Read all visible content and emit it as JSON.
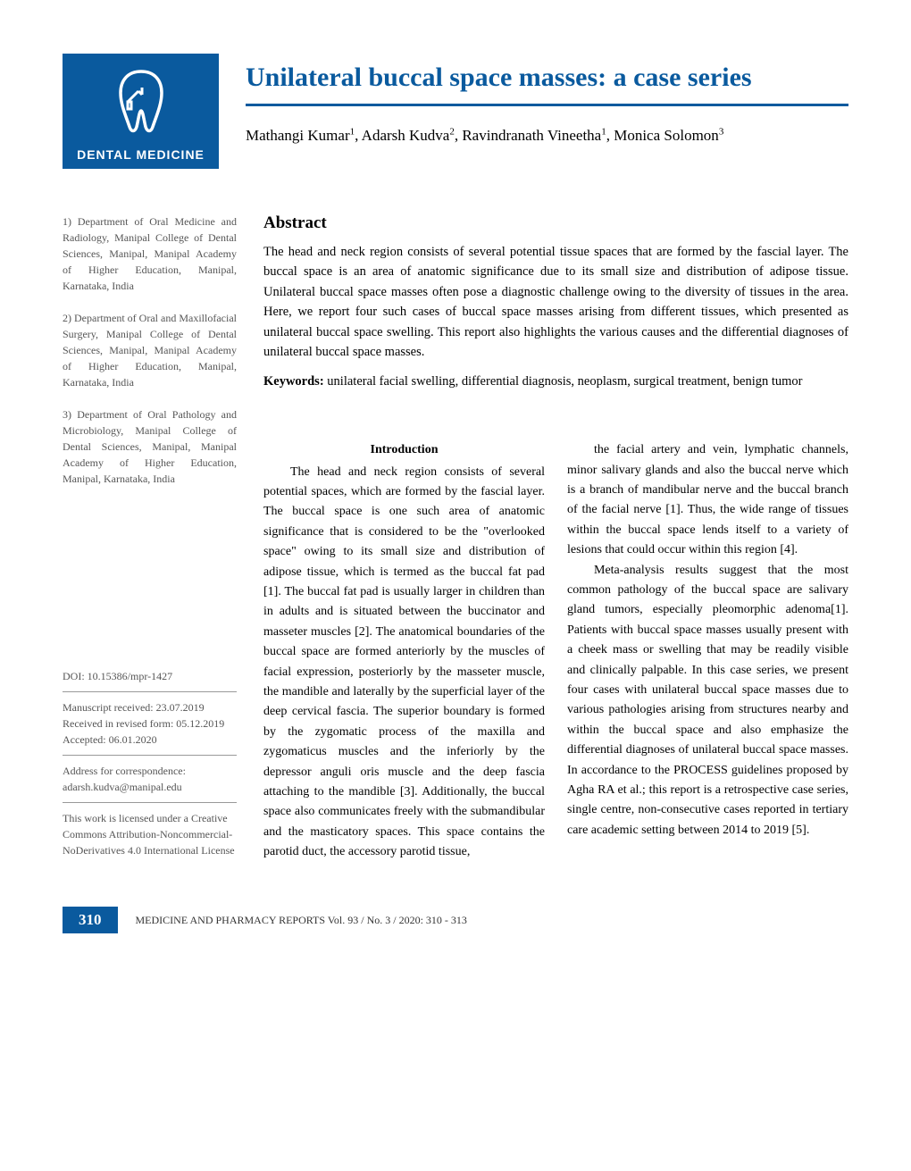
{
  "logo": {
    "text": "DENTAL MEDICINE"
  },
  "article": {
    "title": "Unilateral buccal space masses: a case series",
    "authors_html": "Mathangi Kumar<sup>1</sup>, Adarsh Kudva<sup>2</sup>, Ravindranath Vineetha<sup>1</sup>, Monica Solomon<sup>3</sup>"
  },
  "affiliations": [
    "1) Department of Oral Medicine and Radiology, Manipal College of Dental Sciences, Manipal, Manipal Academy of Higher Education, Manipal, Karnataka, India",
    "2) Department of Oral and Maxillofacial Surgery, Manipal College of Dental Sciences, Manipal, Manipal Academy of Higher Education, Manipal, Karnataka, India",
    "3) Department of Oral Pathology and Microbiology, Manipal College of Dental Sciences, Manipal, Manipal Academy of Higher Education, Manipal, Karnataka, India"
  ],
  "abstract": {
    "heading": "Abstract",
    "text": "The head and neck region consists of several potential tissue spaces that are formed by the fascial layer. The buccal space is an area of anatomic significance due to its small size and distribution of adipose tissue. Unilateral buccal space masses often pose a diagnostic challenge owing to the diversity of tissues in the area. Here, we report four such cases of buccal space masses arising from different tissues, which presented as unilateral buccal space swelling. This report also highlights the various causes and the differential diagnoses of unilateral buccal space masses.",
    "keywords_label": "Keywords:",
    "keywords_text": " unilateral facial swelling, differential diagnosis, neoplasm, surgical treatment, benign tumor"
  },
  "body": {
    "intro_heading": "Introduction",
    "col1": "The head and neck region consists of several potential spaces, which are formed by the fascial layer. The buccal space is one such area of anatomic significance that is considered to be the \"overlooked space\" owing to its small size and distribution of adipose tissue, which is termed as the buccal fat pad [1]. The buccal fat pad is usually larger in children than in adults and is situated between the buccinator and masseter muscles [2]. The anatomical boundaries of the buccal space are formed anteriorly by the muscles of facial expression, posteriorly by the masseter muscle, the mandible and laterally by the superficial layer of the deep cervical fascia. The superior boundary is formed by the zygomatic process of the maxilla and zygomaticus muscles and the inferiorly by the depressor anguli oris muscle and the deep fascia attaching to the mandible [3]. Additionally, the buccal space also communicates freely with the submandibular and the masticatory spaces. This space contains the parotid duct, the accessory parotid tissue,",
    "col2": "the facial artery and vein, lymphatic channels, minor salivary glands and also the buccal nerve which is a branch of mandibular nerve and the buccal branch of the facial nerve [1]. Thus, the wide range of tissues within the buccal space lends itself to a variety of lesions that could occur within this region [4].",
    "col2_p2": "Meta-analysis results suggest that the most common pathology of the buccal space are salivary gland tumors, especially pleomorphic adenoma[1]. Patients with buccal space masses usually present with a cheek mass or swelling that may be readily visible and clinically palpable. In this case series, we present four cases with unilateral buccal space masses due to various pathologies arising from structures nearby and within the buccal space and also emphasize the differential diagnoses of unilateral buccal space masses. In accordance to the PROCESS guidelines proposed by Agha RA et al.; this report is a retrospective case series, single centre, non-consecutive cases reported in tertiary care academic setting between 2014 to 2019 [5]."
  },
  "metadata": {
    "doi": "DOI: 10.15386/mpr-1427",
    "received": "Manuscript received: 23.07.2019",
    "revised": "Received in revised form: 05.12.2019",
    "accepted": "Accepted: 06.01.2020",
    "corr_label": "Address for correspondence:",
    "corr_email": "adarsh.kudva@manipal.edu",
    "license": "This work is licensed under a Creative Commons Attribution-Noncommercial-NoDerivatives 4.0 International License"
  },
  "footer": {
    "page": "310",
    "citation": "MEDICINE AND PHARMACY REPORTS Vol. 93 / No. 3 / 2020: 310 - 313"
  },
  "colors": {
    "brand": "#0a5a9e",
    "text": "#000000",
    "muted": "#555555",
    "background": "#ffffff"
  }
}
